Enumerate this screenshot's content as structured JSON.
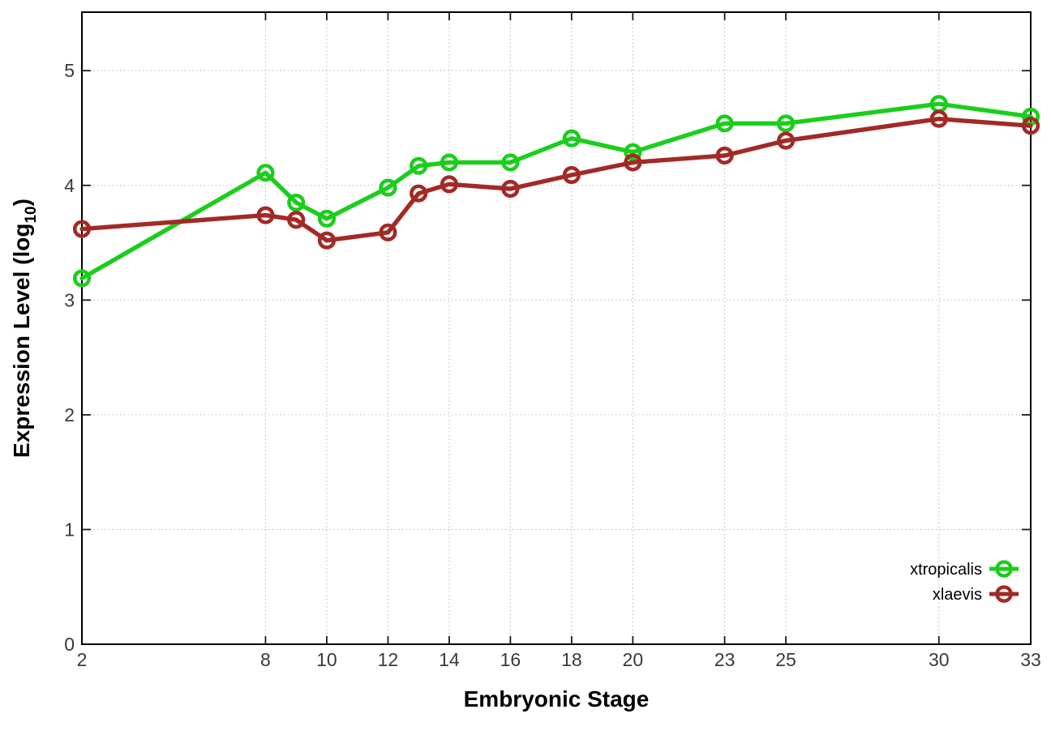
{
  "figure": {
    "background": "#ffffff"
  },
  "chart_data": {
    "type": "line",
    "title": "",
    "xlabel": "Embryonic Stage",
    "ylabel": "Expression Level (log10)",
    "ylabel_parts": {
      "prefix": "Expression Level (log",
      "subscript": "10",
      "suffix": ")"
    },
    "x": [
      2,
      8,
      9,
      10,
      12,
      13,
      14,
      16,
      18,
      20,
      23,
      25,
      30,
      33
    ],
    "xticks": [
      2,
      8,
      10,
      12,
      14,
      16,
      18,
      20,
      23,
      25,
      30,
      33
    ],
    "yticks": [
      0,
      1,
      2,
      3,
      4,
      5
    ],
    "xlim": [
      2,
      33
    ],
    "ylim": [
      0,
      5.51
    ],
    "grid": true,
    "series": [
      {
        "name": "xtropicalis",
        "color": "#1ccd1c",
        "marker": "open-circle",
        "values": [
          3.19,
          4.11,
          3.85,
          3.71,
          3.98,
          4.17,
          4.2,
          4.2,
          4.41,
          4.29,
          4.54,
          4.54,
          4.71,
          4.6
        ]
      },
      {
        "name": "xlaevis",
        "color": "#a22a26",
        "marker": "open-circle",
        "values": [
          3.62,
          3.74,
          3.7,
          3.52,
          3.59,
          3.93,
          4.01,
          3.97,
          4.09,
          4.2,
          4.26,
          4.39,
          4.58,
          4.52
        ]
      }
    ],
    "legend": {
      "position": "inside-bottom-right",
      "entries": [
        "xtropicalis",
        "xlaevis"
      ]
    },
    "colors": {
      "axis": "#000000",
      "grid": "#bcbcbc",
      "tick": "#1a1a1a",
      "tick_label": "#3a3a3a",
      "axis_title": "#000000",
      "legend_text": "#000000"
    }
  }
}
